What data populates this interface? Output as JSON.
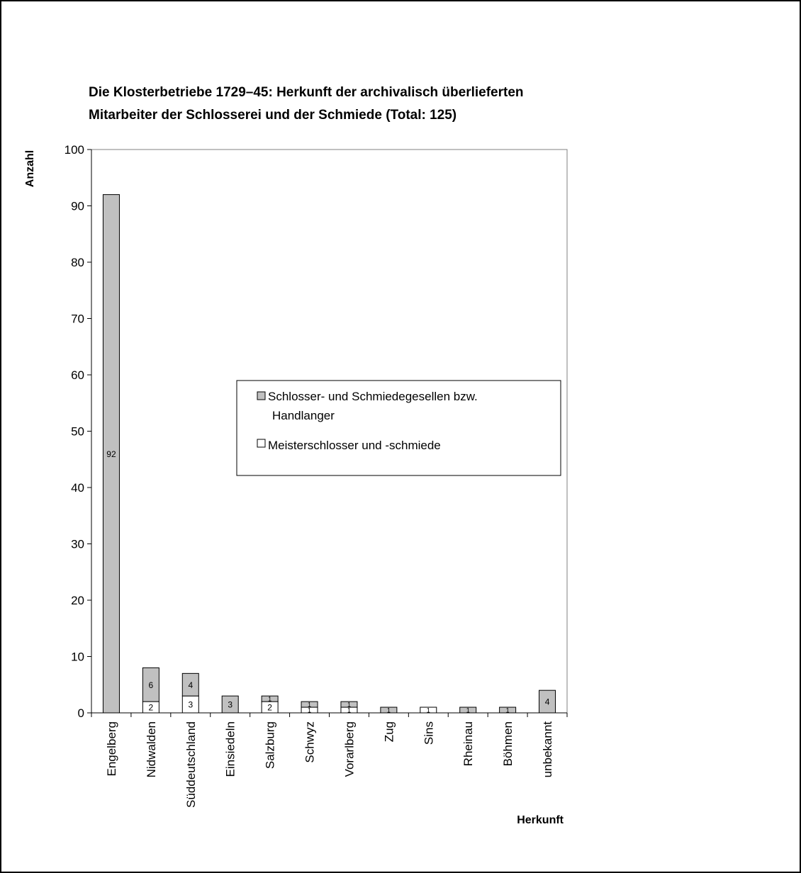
{
  "chart_data": {
    "type": "bar",
    "stacked": true,
    "title_lines": [
      "Die Klosterbetriebe 1729–45: Herkunft der archivalisch überlieferten",
      "Mitarbeiter der Schlosserei und der Schmiede (Total: 125)"
    ],
    "xlabel": "Herkunft",
    "ylabel": "Anzahl",
    "ylim": [
      0,
      100
    ],
    "yticks": [
      "0",
      "10",
      "20",
      "30",
      "40",
      "50",
      "60",
      "70",
      "80",
      "90",
      "100"
    ],
    "categories": [
      "Engelberg",
      "Nidwalden",
      "Süddeutschland",
      "Einsiedeln",
      "Salzburg",
      "Schwyz",
      "Vorarlberg",
      "Zug",
      "Sins",
      "Rheinau",
      "Böhmen",
      "unbekannt"
    ],
    "series": [
      {
        "name": "Meisterschlosser und -schmiede",
        "color": "#ffffff",
        "values": [
          0,
          2,
          3,
          0,
          2,
          1,
          1,
          0,
          1,
          0,
          0,
          0
        ],
        "labels": [
          "",
          "2",
          "3",
          "",
          "2",
          "1",
          "1",
          "",
          "1",
          "",
          "",
          ""
        ]
      },
      {
        "name": "Schlosser- und Schmiedegesellen bzw. Handlanger",
        "color": "#c0c0c0",
        "values": [
          92,
          6,
          4,
          3,
          1,
          1,
          1,
          1,
          0,
          1,
          1,
          4
        ],
        "labels": [
          "92",
          "6",
          "4",
          "3",
          "1",
          "1",
          "1",
          "1",
          "",
          "1",
          "1",
          "4"
        ]
      }
    ],
    "legend": {
      "placement": "center",
      "entries": [
        {
          "line1": "Schlosser- und Schmiedegesellen bzw.",
          "line2": "Handlanger",
          "color": "#c0c0c0"
        },
        {
          "line1": "Meisterschlosser und -schmiede",
          "line2": "",
          "color": "#ffffff"
        }
      ]
    },
    "grid": false
  }
}
